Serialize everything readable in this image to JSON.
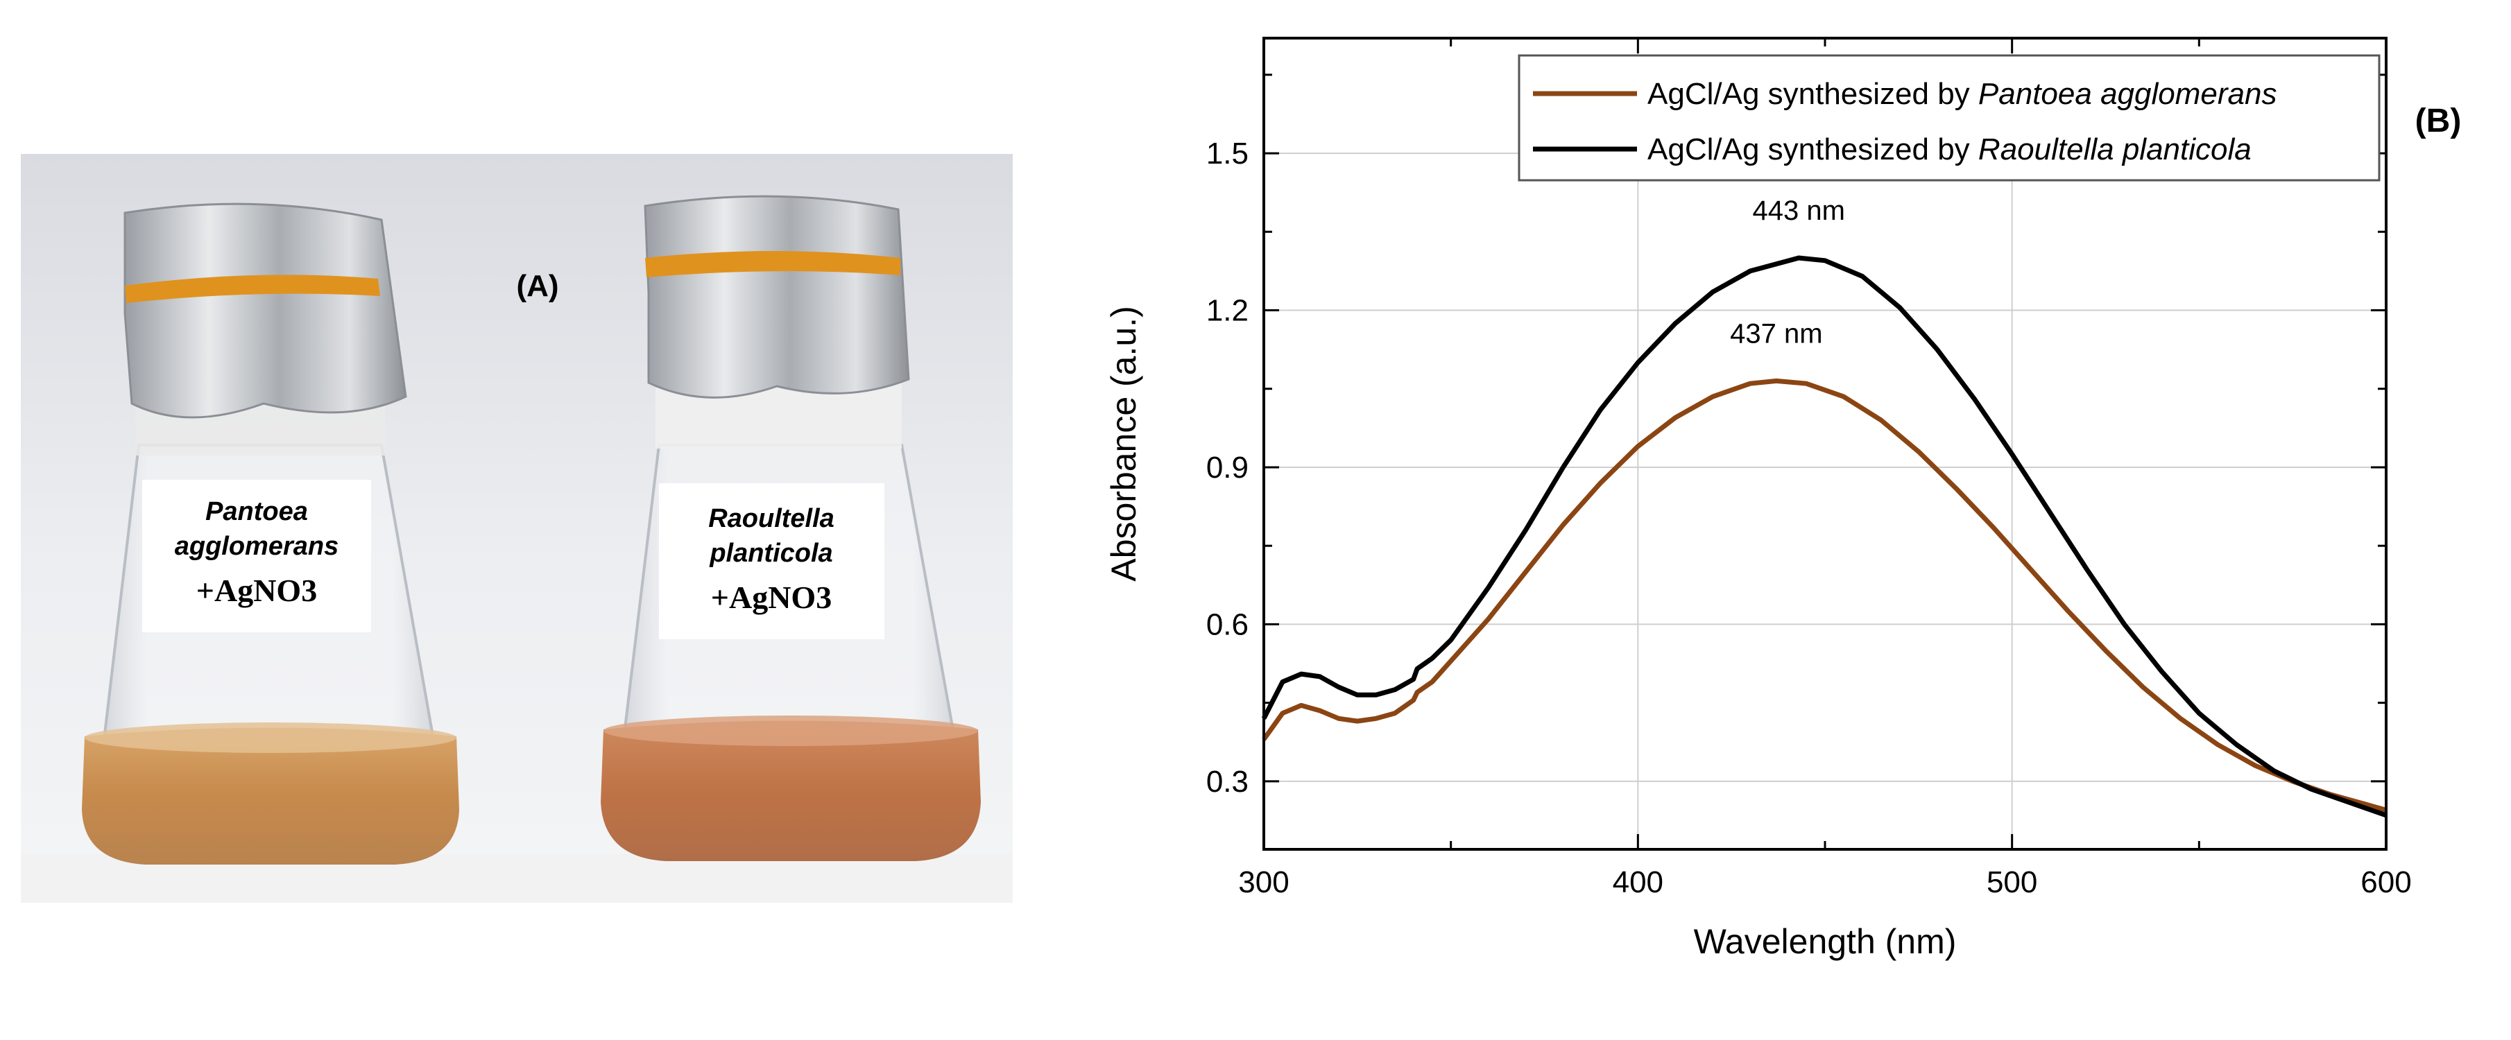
{
  "panel_a": {
    "label": "(A)",
    "flask_left": {
      "species_line1": "Pantoea",
      "species_line2": "agglomerans",
      "reagent": "+AgNO3"
    },
    "flask_right": {
      "species_line1": "Raoultella",
      "species_line2": "planticola",
      "reagent": "+AgNO3"
    }
  },
  "chart_data": {
    "type": "line",
    "panel_label": "(B)",
    "title": "",
    "xlabel": "Wavelength (nm)",
    "ylabel": "Absorbance (a.u.)",
    "xlim": [
      300,
      600
    ],
    "ylim": [
      0.17,
      1.72
    ],
    "xticks": [
      "300",
      "400",
      "500",
      "600"
    ],
    "yticks": [
      "0.3",
      "0.6",
      "0.9",
      "1.2",
      "1.5"
    ],
    "ytick_values": [
      0.3,
      0.6,
      0.9,
      1.2,
      1.5
    ],
    "grid": true,
    "legend_position": "top-right",
    "series": [
      {
        "name_prefix": "AgCl/Ag synthesized by ",
        "name_species": "Pantoea agglomerans",
        "color": "#8B4513",
        "peak_label": "437 nm",
        "peak": [
          437,
          1.065
        ],
        "x": [
          300,
          305,
          310,
          315,
          320,
          325,
          330,
          335,
          340,
          341,
          345,
          350,
          360,
          370,
          380,
          390,
          400,
          410,
          420,
          430,
          437,
          445,
          455,
          465,
          475,
          485,
          495,
          505,
          515,
          525,
          535,
          545,
          555,
          565,
          575,
          585,
          595,
          600
        ],
        "y": [
          0.38,
          0.43,
          0.445,
          0.435,
          0.42,
          0.415,
          0.42,
          0.43,
          0.455,
          0.47,
          0.49,
          0.53,
          0.61,
          0.7,
          0.79,
          0.87,
          0.94,
          0.995,
          1.035,
          1.06,
          1.065,
          1.06,
          1.035,
          0.99,
          0.93,
          0.86,
          0.785,
          0.705,
          0.625,
          0.55,
          0.48,
          0.42,
          0.37,
          0.33,
          0.3,
          0.275,
          0.255,
          0.245
        ]
      },
      {
        "name_prefix": "AgCl/Ag synthesized by ",
        "name_species": "Raoultella planticola",
        "color": "#000000",
        "peak_label": "443 nm",
        "peak": [
          443,
          1.3
        ],
        "x": [
          300,
          305,
          310,
          315,
          320,
          325,
          330,
          335,
          340,
          341,
          345,
          350,
          360,
          370,
          380,
          390,
          400,
          410,
          420,
          430,
          443,
          450,
          460,
          470,
          480,
          490,
          500,
          510,
          520,
          530,
          540,
          550,
          560,
          570,
          580,
          590,
          600
        ],
        "y": [
          0.42,
          0.49,
          0.505,
          0.5,
          0.48,
          0.465,
          0.465,
          0.475,
          0.495,
          0.515,
          0.535,
          0.57,
          0.67,
          0.78,
          0.9,
          1.01,
          1.1,
          1.175,
          1.235,
          1.275,
          1.3,
          1.295,
          1.265,
          1.205,
          1.125,
          1.03,
          0.925,
          0.815,
          0.705,
          0.6,
          0.51,
          0.43,
          0.37,
          0.32,
          0.285,
          0.26,
          0.235
        ]
      }
    ]
  }
}
